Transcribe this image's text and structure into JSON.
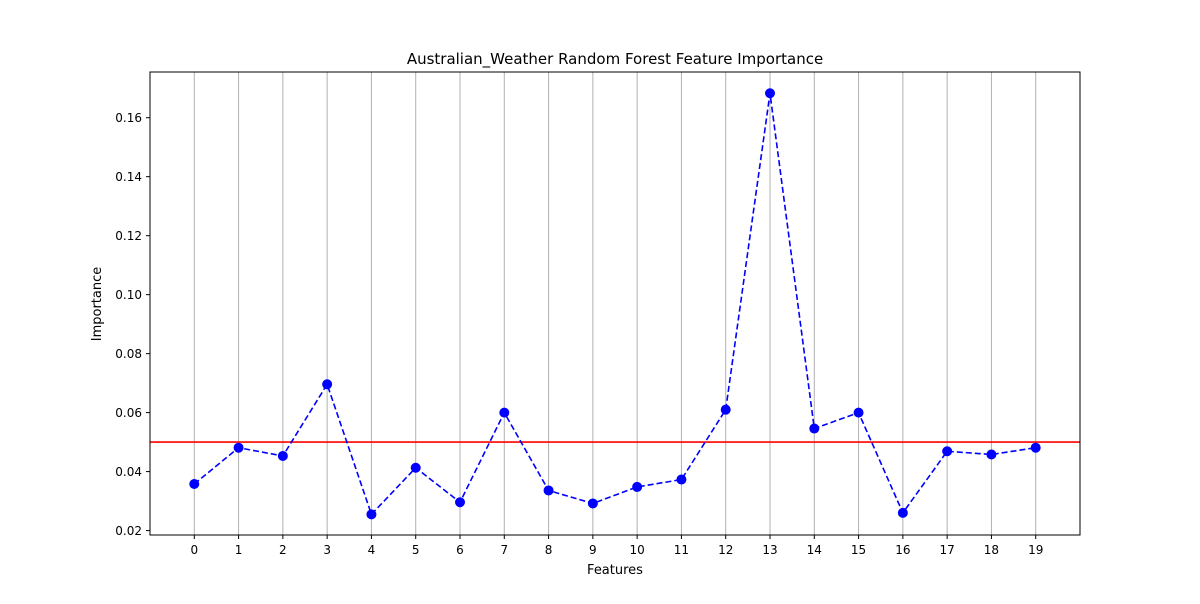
{
  "chart_data": {
    "type": "line",
    "title": "Australian_Weather Random Forest Feature Importance",
    "xlabel": "Features",
    "ylabel": "Importance",
    "x": [
      0,
      1,
      2,
      3,
      4,
      5,
      6,
      7,
      8,
      9,
      10,
      11,
      12,
      13,
      14,
      15,
      16,
      17,
      18,
      19
    ],
    "x_tick_labels": [
      "0",
      "1",
      "2",
      "3",
      "4",
      "5",
      "6",
      "7",
      "8",
      "9",
      "10",
      "11",
      "12",
      "13",
      "14",
      "15",
      "16",
      "17",
      "18",
      "19"
    ],
    "y_tick_values": [
      0.02,
      0.04,
      0.06,
      0.08,
      0.1,
      0.12,
      0.14,
      0.16
    ],
    "y_tick_labels": [
      "0.02",
      "0.04",
      "0.06",
      "0.08",
      "0.10",
      "0.12",
      "0.14",
      "0.16"
    ],
    "xlim": [
      -1,
      20
    ],
    "ylim": [
      0.0185,
      0.1755
    ],
    "series": [
      {
        "values": [
          0.0358,
          0.0481,
          0.0453,
          0.0696,
          0.0255,
          0.0413,
          0.0296,
          0.06,
          0.0336,
          0.0292,
          0.0348,
          0.0373,
          0.061,
          0.1683,
          0.0546,
          0.06,
          0.026,
          0.0469,
          0.0458,
          0.0481
        ],
        "color": "#0000ff",
        "line_style": "dashed",
        "marker": "circle"
      }
    ],
    "reference_line": {
      "y": 0.05,
      "color": "#ff0000"
    },
    "grid": "vertical",
    "grid_color": "#b0b0b0"
  }
}
